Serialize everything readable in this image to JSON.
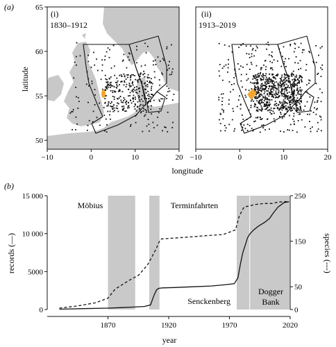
{
  "figure": {
    "panel_a_label": "(a)",
    "panel_b_label": "(b)"
  },
  "colors": {
    "land": "#c8c8c8",
    "sea": "#ffffff",
    "points": "#111111",
    "highlight": "#f2a62b",
    "bands": "#c9c9c9"
  },
  "chart_data": [
    {
      "type": "scatter",
      "panel": "(a)(i)",
      "period_label": "1830–1912",
      "sublabel": "(i)",
      "xlabel": "",
      "ylabel": "latitude",
      "xlim": [
        -10,
        20
      ],
      "ylim": [
        49,
        65
      ],
      "xticks": [
        -10,
        0,
        10,
        20
      ],
      "yticks": [
        50,
        55,
        60,
        65
      ],
      "note": "map of North Sea records, grey land, black points, orange highlight cluster near 3E 55N"
    },
    {
      "type": "scatter",
      "panel": "(a)(ii)",
      "period_label": "1913–2019",
      "sublabel": "(ii)",
      "xlabel": "",
      "ylabel": "",
      "xlim": [
        -10,
        20
      ],
      "ylim": [
        49,
        65
      ],
      "xticks": [
        -10,
        0,
        10,
        20
      ],
      "yticks": [],
      "shared_xlabel": "longitude"
    },
    {
      "type": "line",
      "panel": "(b)",
      "xlabel": "year",
      "ylabel": "records (—)",
      "y2label": "species (---)",
      "xlim": [
        1820,
        2020
      ],
      "ylim": [
        0,
        15000
      ],
      "y2lim": [
        0,
        250
      ],
      "xticks": [
        1870,
        1920,
        1970,
        2020
      ],
      "yticks": [
        0,
        5000,
        10000,
        15000
      ],
      "ytick_labels": [
        "0",
        "5000",
        "10 000",
        "15 000"
      ],
      "y2ticks": [
        0,
        50,
        150,
        250
      ],
      "bands": [
        {
          "start": 1870,
          "end": 1893,
          "label": "Möbius"
        },
        {
          "start": 1904,
          "end": 1913,
          "label": "Terminfahrten"
        },
        {
          "start": 1976,
          "end": 1987,
          "label": "Senckenberg"
        },
        {
          "start": 1987,
          "end": 2020,
          "label": "Dogger Bank"
        }
      ],
      "series": [
        {
          "name": "records",
          "style": "solid",
          "x": [
            1830,
            1850,
            1870,
            1880,
            1890,
            1900,
            1905,
            1908,
            1910,
            1912,
            1915,
            1925,
            1940,
            1955,
            1965,
            1974,
            1977,
            1979,
            1981,
            1983,
            1985,
            1987,
            1990,
            1994,
            1999,
            2003,
            2006,
            2010,
            2015,
            2019
          ],
          "y": [
            50,
            120,
            180,
            250,
            320,
            400,
            600,
            1900,
            2600,
            2800,
            2850,
            2900,
            3000,
            3100,
            3250,
            3400,
            4200,
            6000,
            7500,
            8500,
            9500,
            10000,
            10500,
            11000,
            11500,
            12000,
            12700,
            13500,
            14100,
            14200
          ]
        },
        {
          "name": "species",
          "style": "dashed",
          "x": [
            1830,
            1845,
            1860,
            1870,
            1876,
            1882,
            1888,
            1895,
            1900,
            1903,
            1906,
            1908,
            1910,
            1912,
            1914,
            1930,
            1950,
            1965,
            1975,
            1978,
            1982,
            1987,
            1990,
            1995,
            2000,
            2005,
            2010,
            2015,
            2019
          ],
          "y": [
            3,
            8,
            15,
            25,
            45,
            55,
            65,
            75,
            90,
            100,
            115,
            125,
            135,
            148,
            155,
            158,
            162,
            165,
            175,
            205,
            225,
            228,
            230,
            232,
            233,
            233,
            236,
            237,
            237
          ]
        }
      ]
    }
  ]
}
